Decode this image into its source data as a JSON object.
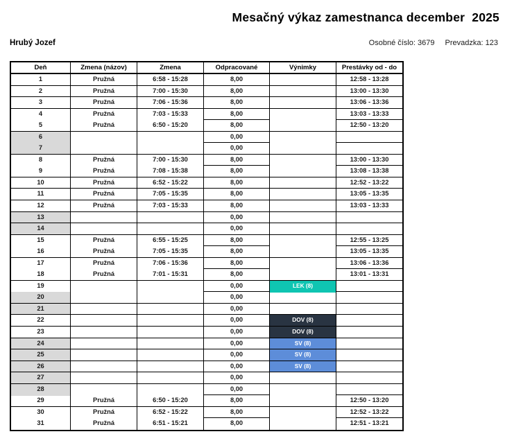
{
  "page": {
    "title": "Mesačný výkaz zamestnanca december  2025",
    "employee_name": "Hrubý Jozef",
    "personal_number_label": "Osobné číslo:",
    "personal_number": "3679",
    "plant_label": "Prevadzka:",
    "plant": "123"
  },
  "colors": {
    "shaded_day": "#d9d9d9",
    "exception_lek": "#0fc5b2",
    "exception_dov": "#293442",
    "exception_sv": "#5d8dd9"
  },
  "table": {
    "headers": [
      "Deň",
      "Zmena (názov)",
      "Zmena",
      "Odpracované",
      "Výnimky",
      "Prestávky od - do"
    ],
    "rows": [
      {
        "day": "1",
        "shift_name": "Pružná",
        "shift": "6:58 - 15:28",
        "worked": "8,00",
        "exception": "",
        "exception_type": "",
        "breaks": "12:58 - 13:28",
        "shaded": false,
        "partial": false
      },
      {
        "day": "2",
        "shift_name": "Pružná",
        "shift": "7:00 - 15:30",
        "worked": "8,00",
        "exception": "",
        "exception_type": "",
        "breaks": "13:00 - 13:30",
        "shaded": false,
        "partial": false
      },
      {
        "day": "3",
        "shift_name": "Pružná",
        "shift": "7:06 - 15:36",
        "worked": "8,00",
        "exception": "",
        "exception_type": "",
        "breaks": "13:06 - 13:36",
        "shaded": false,
        "partial": false
      },
      {
        "day": "4",
        "shift_name": "Pružná",
        "shift": "7:03 - 15:33",
        "worked": "8,00",
        "exception": "",
        "exception_type": "",
        "breaks": "13:03 - 13:33",
        "shaded": false,
        "partial": true
      },
      {
        "day": "5",
        "shift_name": "Pružná",
        "shift": "6:50 - 15:20",
        "worked": "8,00",
        "exception": "",
        "exception_type": "",
        "breaks": "12:50 - 13:20",
        "shaded": false,
        "partial": false
      },
      {
        "day": "6",
        "shift_name": "",
        "shift": "",
        "worked": "0,00",
        "exception": "",
        "exception_type": "",
        "breaks": "",
        "shaded": true,
        "partial": true
      },
      {
        "day": "7",
        "shift_name": "",
        "shift": "",
        "worked": "0,00",
        "exception": "",
        "exception_type": "",
        "breaks": "",
        "shaded": true,
        "partial": false
      },
      {
        "day": "8",
        "shift_name": "Pružná",
        "shift": "7:00 - 15:30",
        "worked": "8,00",
        "exception": "",
        "exception_type": "",
        "breaks": "13:00 - 13:30",
        "shaded": false,
        "partial": true
      },
      {
        "day": "9",
        "shift_name": "Pružná",
        "shift": "7:08 - 15:38",
        "worked": "8,00",
        "exception": "",
        "exception_type": "",
        "breaks": "13:08 - 13:38",
        "shaded": false,
        "partial": false
      },
      {
        "day": "10",
        "shift_name": "Pružná",
        "shift": "6:52 - 15:22",
        "worked": "8,00",
        "exception": "",
        "exception_type": "",
        "breaks": "12:52 - 13:22",
        "shaded": false,
        "partial": false
      },
      {
        "day": "11",
        "shift_name": "Pružná",
        "shift": "7:05 - 15:35",
        "worked": "8,00",
        "exception": "",
        "exception_type": "",
        "breaks": "13:05 - 13:35",
        "shaded": false,
        "partial": false
      },
      {
        "day": "12",
        "shift_name": "Pružná",
        "shift": "7:03 - 15:33",
        "worked": "8,00",
        "exception": "",
        "exception_type": "",
        "breaks": "13:03 - 13:33",
        "shaded": false,
        "partial": false
      },
      {
        "day": "13",
        "shift_name": "",
        "shift": "",
        "worked": "0,00",
        "exception": "",
        "exception_type": "",
        "breaks": "",
        "shaded": true,
        "partial": false
      },
      {
        "day": "14",
        "shift_name": "",
        "shift": "",
        "worked": "0,00",
        "exception": "",
        "exception_type": "",
        "breaks": "",
        "shaded": true,
        "partial": false
      },
      {
        "day": "15",
        "shift_name": "Pružná",
        "shift": "6:55 - 15:25",
        "worked": "8,00",
        "exception": "",
        "exception_type": "",
        "breaks": "12:55 - 13:25",
        "shaded": false,
        "partial": true
      },
      {
        "day": "16",
        "shift_name": "Pružná",
        "shift": "7:05 - 15:35",
        "worked": "8,00",
        "exception": "",
        "exception_type": "",
        "breaks": "13:05 - 13:35",
        "shaded": false,
        "partial": false
      },
      {
        "day": "17",
        "shift_name": "Pružná",
        "shift": "7:06 - 15:36",
        "worked": "8,00",
        "exception": "",
        "exception_type": "",
        "breaks": "13:06 - 13:36",
        "shaded": false,
        "partial": true
      },
      {
        "day": "18",
        "shift_name": "Pružná",
        "shift": "7:01 - 15:31",
        "worked": "8,00",
        "exception": "",
        "exception_type": "",
        "breaks": "13:01 - 13:31",
        "shaded": false,
        "partial": false
      },
      {
        "day": "19",
        "shift_name": "",
        "shift": "",
        "worked": "0,00",
        "exception": "LEK (8)",
        "exception_type": "lek",
        "breaks": "",
        "shaded": false,
        "partial": true
      },
      {
        "day": "20",
        "shift_name": "",
        "shift": "",
        "worked": "0,00",
        "exception": "",
        "exception_type": "",
        "breaks": "",
        "shaded": true,
        "partial": false
      },
      {
        "day": "21",
        "shift_name": "",
        "shift": "",
        "worked": "0,00",
        "exception": "",
        "exception_type": "",
        "breaks": "",
        "shaded": true,
        "partial": false
      },
      {
        "day": "22",
        "shift_name": "",
        "shift": "",
        "worked": "0,00",
        "exception": "DOV (8)",
        "exception_type": "dov",
        "breaks": "",
        "shaded": false,
        "partial": false
      },
      {
        "day": "23",
        "shift_name": "",
        "shift": "",
        "worked": "0,00",
        "exception": "DOV (8)",
        "exception_type": "dov",
        "breaks": "",
        "shaded": false,
        "partial": false
      },
      {
        "day": "24",
        "shift_name": "",
        "shift": "",
        "worked": "0,00",
        "exception": "SV (8)",
        "exception_type": "sv",
        "breaks": "",
        "shaded": true,
        "partial": false
      },
      {
        "day": "25",
        "shift_name": "",
        "shift": "",
        "worked": "0,00",
        "exception": "SV (8)",
        "exception_type": "sv",
        "breaks": "",
        "shaded": true,
        "partial": false
      },
      {
        "day": "26",
        "shift_name": "",
        "shift": "",
        "worked": "0,00",
        "exception": "SV (8)",
        "exception_type": "sv",
        "breaks": "",
        "shaded": true,
        "partial": false
      },
      {
        "day": "27",
        "shift_name": "",
        "shift": "",
        "worked": "0,00",
        "exception": "",
        "exception_type": "",
        "breaks": "",
        "shaded": true,
        "partial": false
      },
      {
        "day": "28",
        "shift_name": "",
        "shift": "",
        "worked": "0,00",
        "exception": "",
        "exception_type": "",
        "breaks": "",
        "shaded": true,
        "partial": true
      },
      {
        "day": "29",
        "shift_name": "Pružná",
        "shift": "6:50 - 15:20",
        "worked": "8,00",
        "exception": "",
        "exception_type": "",
        "breaks": "12:50 - 13:20",
        "shaded": false,
        "partial": false
      },
      {
        "day": "30",
        "shift_name": "Pružná",
        "shift": "6:52 - 15:22",
        "worked": "8,00",
        "exception": "",
        "exception_type": "",
        "breaks": "12:52 - 13:22",
        "shaded": false,
        "partial": true
      },
      {
        "day": "31",
        "shift_name": "Pružná",
        "shift": "6:51 - 15:21",
        "worked": "8,00",
        "exception": "",
        "exception_type": "",
        "breaks": "12:51 - 13:21",
        "shaded": false,
        "partial": false
      }
    ]
  }
}
